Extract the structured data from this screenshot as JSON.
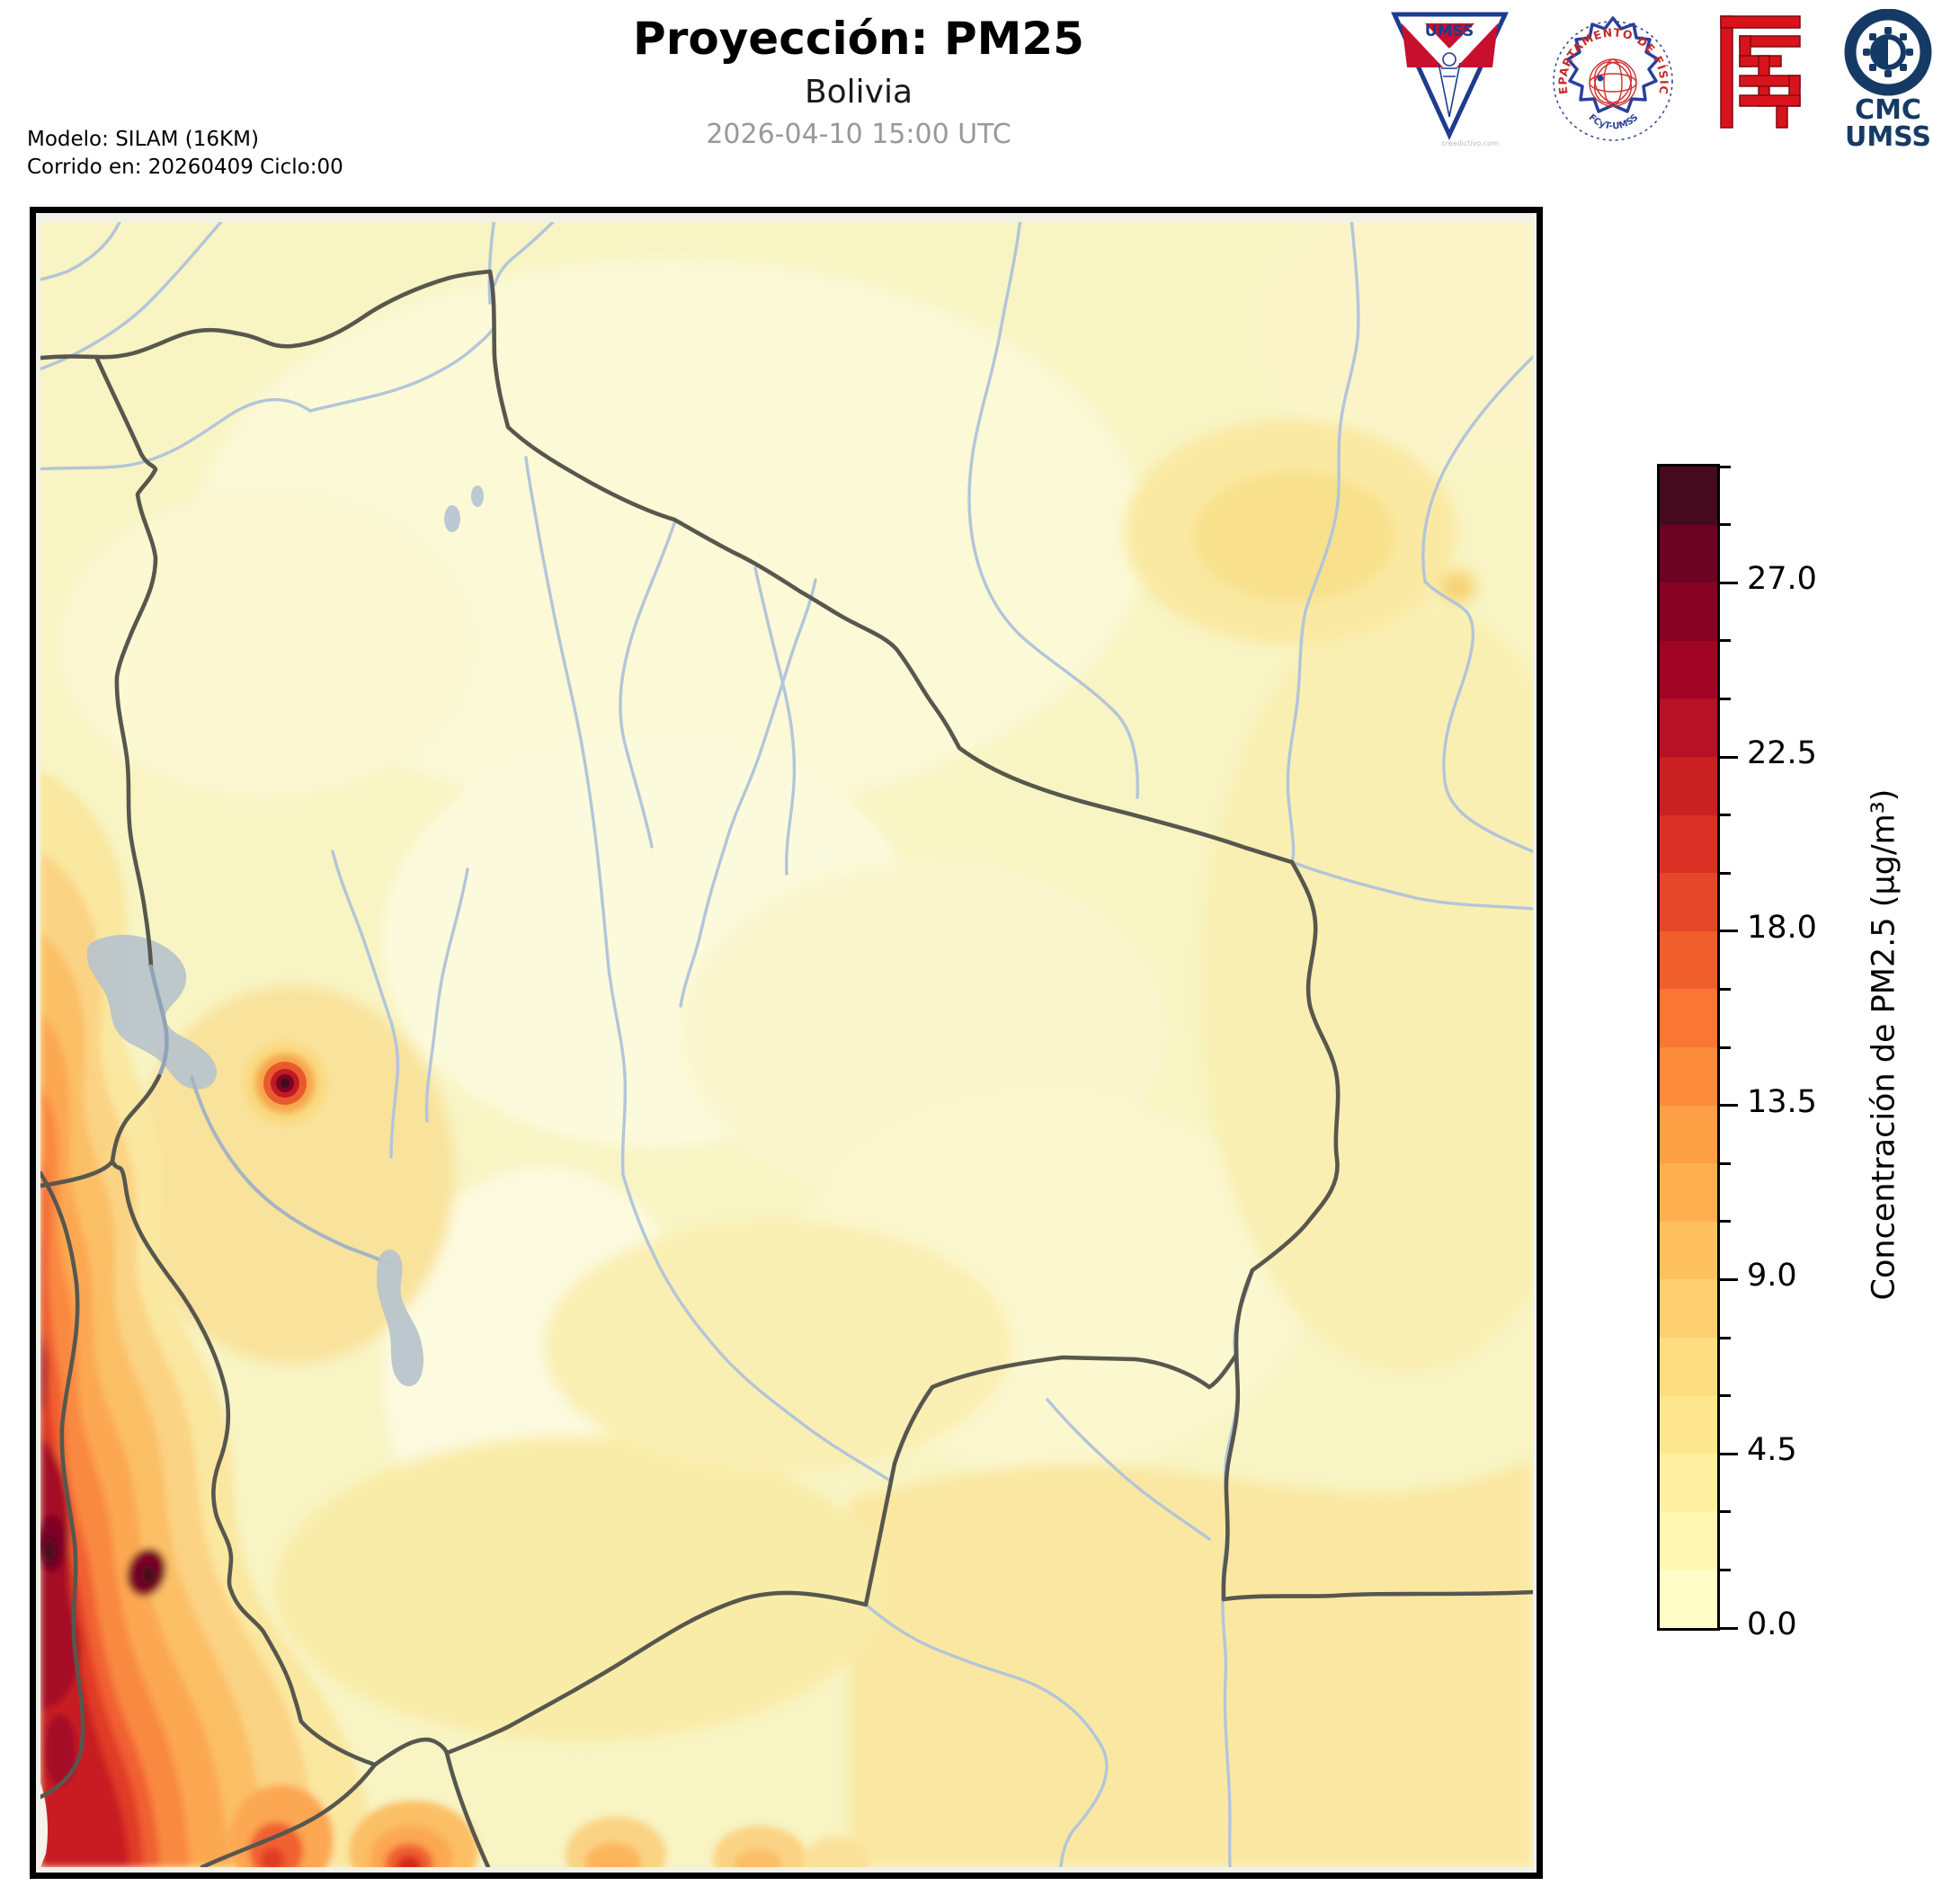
{
  "header": {
    "title": "Proyección: PM25",
    "subtitle": "Bolivia",
    "datetime": "2026-04-10 15:00 UTC",
    "model_line1": "Modelo: SILAM (16KM)",
    "model_line2": "Corrido en: 20260409 Ciclo:00"
  },
  "logos": {
    "umss_pennant_label": "UMSS",
    "umss_pennant_caption": "creadictivo.com",
    "fisica_seal_top": "DEPARTAMENTO DE FÍSICA",
    "fisica_seal_bottom": "FCyT-UMSS",
    "cmc_line1": "CMC",
    "cmc_line2": "UMSS"
  },
  "colorbar": {
    "label": "Concentración de PM2.5 (µg/m³)",
    "vmin": 0,
    "vmax": 30,
    "minor_step": 1.5,
    "major_step": 4.5,
    "major_labels": [
      "0.0",
      "4.5",
      "9.0",
      "13.5",
      "18.0",
      "22.5",
      "27.0"
    ],
    "segment_colors_bottom_to_top": [
      "#FFFEC9",
      "#FFF8B2",
      "#FEF0A0",
      "#FEE78E",
      "#FEDD80",
      "#FED072",
      "#FEC15E",
      "#FDB04D",
      "#FD9F44",
      "#FC8B3C",
      "#F97634",
      "#F15E2E",
      "#E6462A",
      "#D93126",
      "#C92023",
      "#B61124",
      "#A00525",
      "#880225",
      "#6B0423",
      "#450A1E"
    ]
  },
  "chart_data": {
    "type": "heatmap",
    "title": "Proyección: PM25",
    "subtitle": "Bolivia",
    "timestamp": "2026-04-10 15:00 UTC",
    "variable": "Concentración de PM2.5 (µg/m³)",
    "model": "SILAM (16KM)",
    "run": "20260409 Ciclo:00",
    "colorbar_range": [
      0,
      30
    ],
    "colorbar_ticks": [
      0.0,
      4.5,
      9.0,
      13.5,
      18.0,
      22.5,
      27.0
    ],
    "legend_position": "right",
    "visible_features": [
      "Fondo amarillo pálido (~2-6 µg/m³) sobre la mayor parte de Bolivia",
      "Banda roja intensa (18-30 µg/m³) a lo largo del borde oeste (costa de Chile)",
      "Punto caliente oscuro (~30 µg/m³) cerca de La Paz al este del Lago Titicaca",
      "Mancha naranja suave (~6-9 µg/m³) en el noreste",
      "Bultos naranjas (~9-15 µg/m³) a lo largo del borde sur",
      "Lago Titicaca y Lago Poopó en gris azulado",
      "Fronteras en gris oscuro y ríos en azul claro"
    ]
  }
}
